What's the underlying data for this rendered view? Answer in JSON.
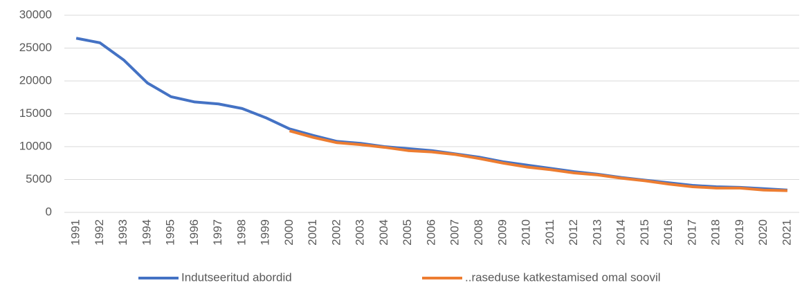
{
  "chart_data": {
    "type": "line",
    "categories": [
      "1991",
      "1992",
      "1993",
      "1994",
      "1995",
      "1996",
      "1997",
      "1998",
      "1999",
      "2000",
      "2001",
      "2002",
      "2003",
      "2004",
      "2005",
      "2006",
      "2007",
      "2008",
      "2009",
      "2010",
      "2011",
      "2012",
      "2013",
      "2014",
      "2015",
      "2016",
      "2017",
      "2018",
      "2019",
      "2020",
      "2021"
    ],
    "series": [
      {
        "name": "Indutseeritud abordid",
        "color": "#4472c4",
        "values": [
          26500,
          25800,
          23200,
          19700,
          17600,
          16800,
          16500,
          15800,
          14400,
          12700,
          11700,
          10800,
          10500,
          10000,
          9700,
          9400,
          8900,
          8400,
          7700,
          7200,
          6700,
          6200,
          5800,
          5300,
          4900,
          4500,
          4100,
          3900,
          3800,
          3600,
          3400
        ]
      },
      {
        "name": "..raseduse katkestamised omal soovil",
        "color": "#ed7d31",
        "values": [
          null,
          null,
          null,
          null,
          null,
          null,
          null,
          null,
          null,
          12400,
          11400,
          10600,
          10300,
          9900,
          9400,
          9200,
          8800,
          8200,
          7500,
          6900,
          6500,
          6000,
          5700,
          5200,
          4800,
          4300,
          3900,
          3700,
          3700,
          3400,
          3300
        ]
      }
    ],
    "ylim": [
      0,
      30000
    ],
    "yticks": [
      0,
      5000,
      10000,
      15000,
      20000,
      25000,
      30000
    ],
    "grid": true,
    "legend": "bottom"
  }
}
